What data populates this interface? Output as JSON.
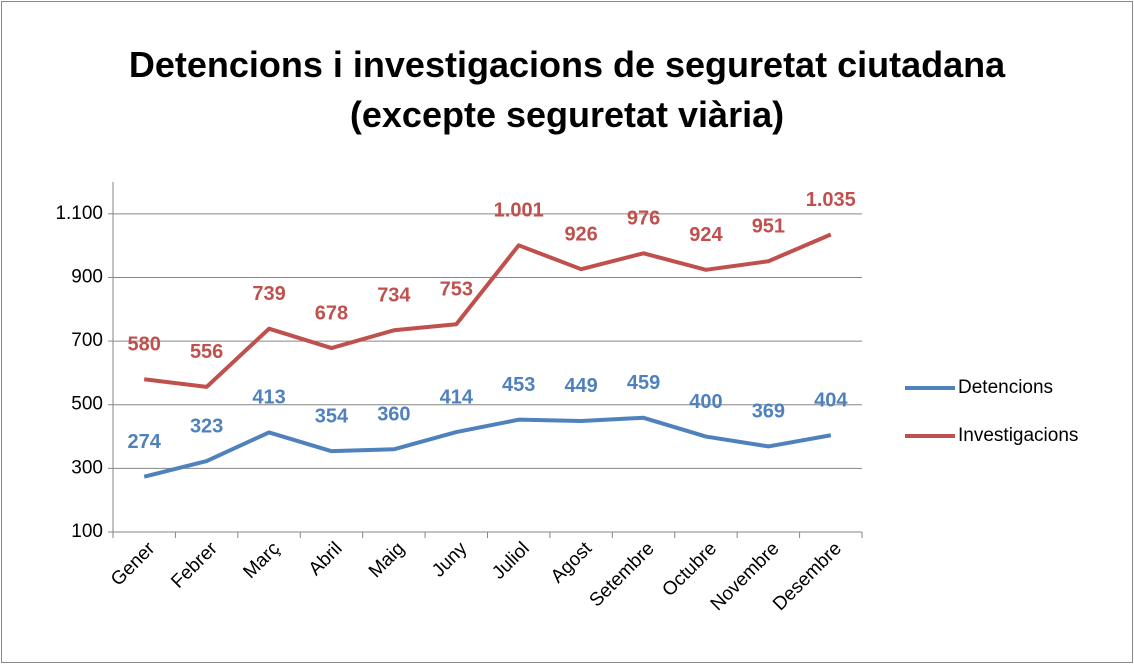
{
  "chart_data": {
    "type": "line",
    "title": "Detencions i investigacions de seguretat ciutadana (excepte seguretat viària)",
    "categories": [
      "Gener",
      "Febrer",
      "Març",
      "Abril",
      "Maig",
      "Juny",
      "Juliol",
      "Agost",
      "Setembre",
      "Octubre",
      "Novembre",
      "Desembre"
    ],
    "series": [
      {
        "name": "Detencions",
        "color": "#4f81bd",
        "values": [
          274,
          323,
          413,
          354,
          360,
          414,
          453,
          449,
          459,
          400,
          369,
          404
        ]
      },
      {
        "name": "Investigacions",
        "color": "#c0504d",
        "values": [
          580,
          556,
          739,
          678,
          734,
          753,
          1001,
          926,
          976,
          924,
          951,
          1035
        ],
        "value_labels": [
          "580",
          "556",
          "739",
          "678",
          "734",
          "753",
          "1.001",
          "926",
          "976",
          "924",
          "951",
          "1.035"
        ]
      }
    ],
    "ylim": [
      100,
      1200
    ],
    "yticks": [
      100,
      300,
      500,
      700,
      900,
      {
        "value": 1100,
        "label": "1.100"
      }
    ],
    "grid": true,
    "legend": "right"
  }
}
